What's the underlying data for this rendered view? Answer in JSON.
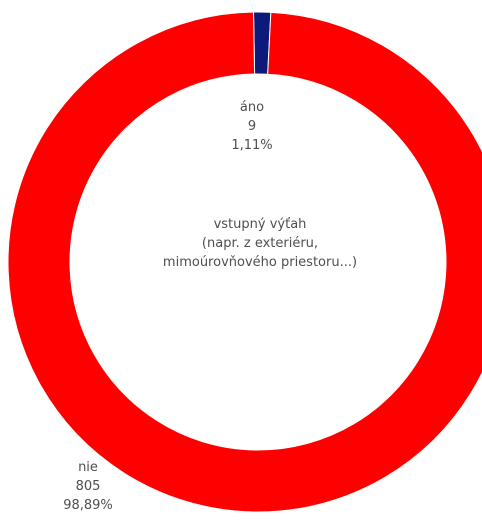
{
  "chart_data": {
    "type": "pie",
    "title_lines": [
      "vstupný výťah",
      "(napr. z exteriéru,",
      "mimoúrovňového priestoru...)"
    ],
    "slices": [
      {
        "label": "áno",
        "value": 9,
        "percent_label": "1,11%",
        "value_label": "9",
        "color": "#0d1a7a"
      },
      {
        "label": "nie",
        "value": 805,
        "percent_label": "98,89%",
        "value_label": "805",
        "color": "#ff0000"
      }
    ],
    "donut": true
  }
}
